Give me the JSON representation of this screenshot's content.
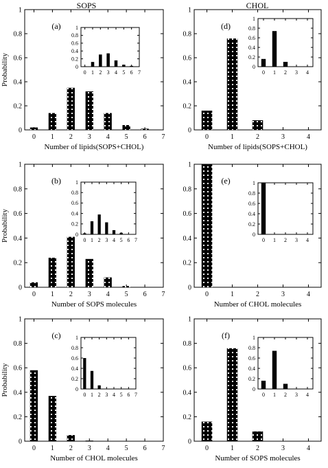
{
  "column_titles": [
    "SOPS",
    "CHOL"
  ],
  "ylabel": "Probability",
  "chart_data": [
    {
      "type": "bar",
      "panel_label": "(a)",
      "xlabel": "Number of lipids(SOPS+CHOL)",
      "ylabel": "Probability",
      "categories": [
        0,
        1,
        2,
        3,
        4,
        5,
        6,
        7
      ],
      "values": [
        0.02,
        0.14,
        0.35,
        0.32,
        0.14,
        0.04,
        0.01,
        0.0
      ],
      "xlim": [
        -0.5,
        7
      ],
      "ylim": [
        0,
        1
      ],
      "yticks": [
        0,
        0.2,
        0.4,
        0.6,
        0.8,
        1
      ],
      "inset": {
        "categories": [
          0,
          1,
          2,
          3,
          4,
          5,
          6,
          7
        ],
        "values": [
          0.01,
          0.12,
          0.31,
          0.34,
          0.16,
          0.05,
          0.02,
          0.0
        ],
        "xlim": [
          -0.5,
          7
        ],
        "ylim": [
          0,
          1
        ],
        "yticks": [
          0,
          0.2,
          0.4,
          0.6,
          0.8,
          1
        ]
      }
    },
    {
      "type": "bar",
      "panel_label": "(d)",
      "xlabel": "Number of lipids(SOPS+CHOL)",
      "ylabel": "",
      "categories": [
        0,
        1,
        2,
        3,
        4
      ],
      "values": [
        0.16,
        0.76,
        0.08,
        0.0,
        0.0
      ],
      "xlim": [
        -0.5,
        4.5
      ],
      "ylim": [
        0,
        1
      ],
      "yticks": [
        0,
        0.2,
        0.4,
        0.6,
        0.8,
        1
      ],
      "inset": {
        "categories": [
          0,
          1,
          2,
          3,
          4
        ],
        "values": [
          0.16,
          0.74,
          0.1,
          0.0,
          0.0
        ],
        "xlim": [
          -0.5,
          4.5
        ],
        "ylim": [
          0,
          1
        ],
        "yticks": [
          0,
          0.2,
          0.4,
          0.6,
          0.8,
          1
        ]
      }
    },
    {
      "type": "bar",
      "panel_label": "(b)",
      "xlabel": "Number of SOPS molecules",
      "ylabel": "Probability",
      "categories": [
        0,
        1,
        2,
        3,
        4,
        5,
        6,
        7
      ],
      "values": [
        0.04,
        0.24,
        0.41,
        0.23,
        0.08,
        0.01,
        0.0,
        0.0
      ],
      "xlim": [
        -0.5,
        7
      ],
      "ylim": [
        0,
        1
      ],
      "yticks": [
        0,
        0.2,
        0.4,
        0.6,
        0.8,
        1
      ],
      "inset": {
        "categories": [
          0,
          1,
          2,
          3,
          4,
          5,
          6,
          7
        ],
        "values": [
          0.02,
          0.25,
          0.38,
          0.23,
          0.08,
          0.03,
          0.0,
          0.0
        ],
        "xlim": [
          -0.5,
          7
        ],
        "ylim": [
          0,
          1
        ],
        "yticks": [
          0,
          0.2,
          0.4,
          0.6,
          0.8,
          1
        ]
      }
    },
    {
      "type": "bar",
      "panel_label": "(e)",
      "xlabel": "Number of CHOL molecules",
      "ylabel": "",
      "categories": [
        0,
        1,
        2,
        3,
        4
      ],
      "values": [
        1.0,
        0.0,
        0.0,
        0.0,
        0.0
      ],
      "xlim": [
        -0.5,
        4.5
      ],
      "ylim": [
        0,
        1
      ],
      "yticks": [
        0,
        0.2,
        0.4,
        0.6,
        0.8,
        1
      ],
      "inset": {
        "categories": [
          0,
          1,
          2,
          3,
          4
        ],
        "values": [
          1.0,
          0.0,
          0.0,
          0.0,
          0.0
        ],
        "xlim": [
          -0.5,
          4.5
        ],
        "ylim": [
          0,
          1
        ],
        "yticks": [
          0,
          0.2,
          0.4,
          0.6,
          0.8,
          1
        ]
      }
    },
    {
      "type": "bar",
      "panel_label": "(c)",
      "xlabel": "Number of CHOL molecules",
      "ylabel": "Probability",
      "categories": [
        0,
        1,
        2,
        3,
        4,
        5,
        6,
        7
      ],
      "values": [
        0.58,
        0.37,
        0.05,
        0.005,
        0.0,
        0.0,
        0.0,
        0.0
      ],
      "xlim": [
        -0.5,
        7
      ],
      "ylim": [
        0,
        1
      ],
      "yticks": [
        0,
        0.2,
        0.4,
        0.6,
        0.8,
        1
      ],
      "inset": {
        "categories": [
          0,
          1,
          2,
          3,
          4,
          5,
          6,
          7
        ],
        "values": [
          0.6,
          0.35,
          0.07,
          0.0,
          0.0,
          0.0,
          0.0,
          0.0
        ],
        "xlim": [
          -0.5,
          7
        ],
        "ylim": [
          0,
          1
        ],
        "yticks": [
          0,
          0.2,
          0.4,
          0.6,
          0.8,
          1
        ]
      }
    },
    {
      "type": "bar",
      "panel_label": "(f)",
      "xlabel": "Number of SOPS molecules",
      "ylabel": "",
      "categories": [
        0,
        1,
        2,
        3,
        4
      ],
      "values": [
        0.16,
        0.76,
        0.08,
        0.0,
        0.0
      ],
      "xlim": [
        -0.5,
        4.5
      ],
      "ylim": [
        0,
        1
      ],
      "yticks": [
        0,
        0.2,
        0.4,
        0.6,
        0.8,
        1
      ],
      "inset": {
        "categories": [
          0,
          1,
          2,
          3,
          4
        ],
        "values": [
          0.16,
          0.74,
          0.1,
          0.0,
          0.0
        ],
        "xlim": [
          -0.5,
          4.5
        ],
        "ylim": [
          0,
          1
        ],
        "yticks": [
          0,
          0.2,
          0.4,
          0.6,
          0.8,
          1
        ]
      }
    }
  ]
}
